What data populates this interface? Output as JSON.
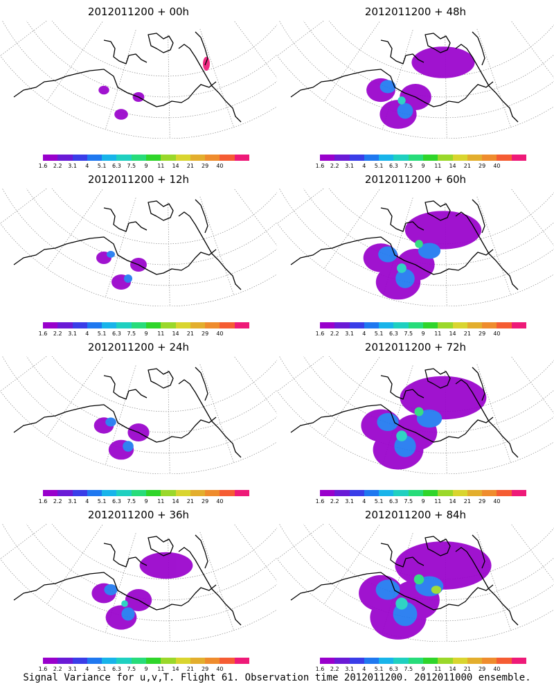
{
  "caption": "Signal Variance for u,v,T. Flight 61. Observation time 2012011200. 2012011000 ensemble.",
  "colorbar": {
    "labels": [
      "1.6",
      "2.2",
      "3.1",
      "4",
      "5.1",
      "6.3",
      "7.5",
      "9",
      "11",
      "14",
      "21",
      "29",
      "40"
    ],
    "colors": [
      "#9900cc",
      "#6a1ad6",
      "#3a3de8",
      "#1f78f0",
      "#18b4ea",
      "#1fd0c0",
      "#27dc7a",
      "#2fd52a",
      "#9ad82a",
      "#d9d52f",
      "#e3ae2d",
      "#ef8c2d",
      "#f55c33",
      "#ee1a78"
    ]
  },
  "panels": [
    {
      "title": "2012011200 + 00h",
      "lead_hours": 0
    },
    {
      "title": "2012011200 + 48h",
      "lead_hours": 48
    },
    {
      "title": "2012011200 + 12h",
      "lead_hours": 12
    },
    {
      "title": "2012011200 + 60h",
      "lead_hours": 60
    },
    {
      "title": "2012011200 + 24h",
      "lead_hours": 24
    },
    {
      "title": "2012011200 + 72h",
      "lead_hours": 72
    },
    {
      "title": "2012011200 + 36h",
      "lead_hours": 36
    },
    {
      "title": "2012011200 + 84h",
      "lead_hours": 84
    }
  ]
}
